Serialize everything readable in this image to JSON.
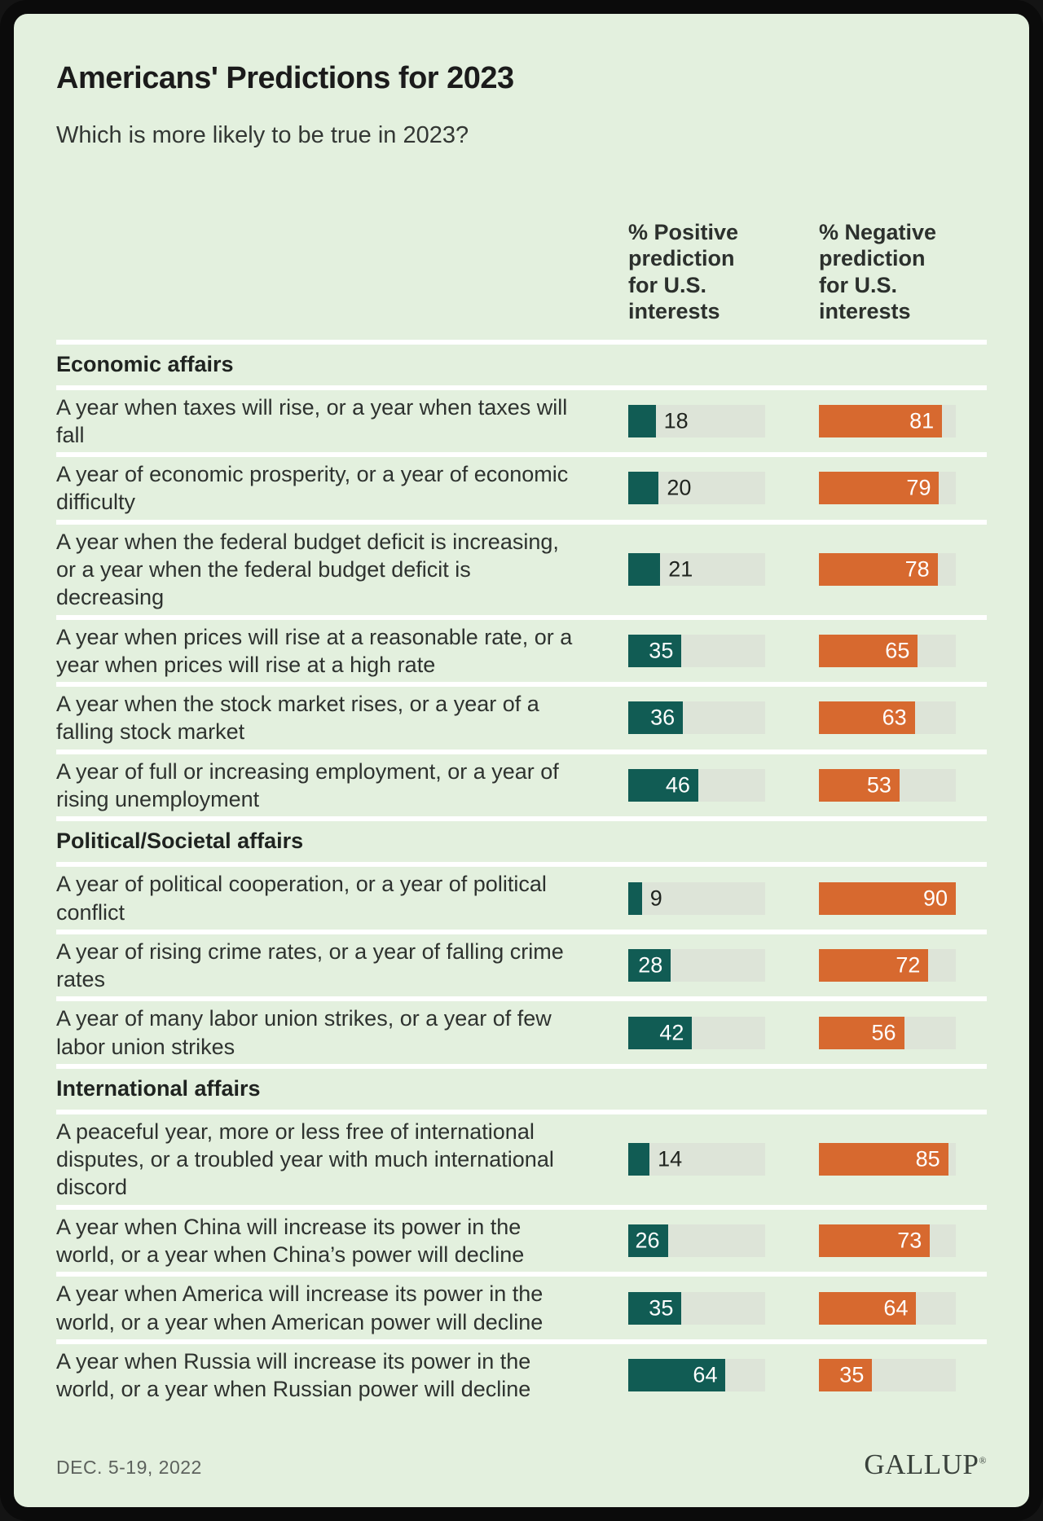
{
  "card": {
    "title": "Americans' Predictions for 2023",
    "subtitle": "Which is more likely to be true in 2023?",
    "column_headers": {
      "positive": "% Positive prediction for U.S. interests",
      "negative": "% Negative prediction for U.S. interests"
    },
    "footer": {
      "date": "DEC. 5-19, 2022",
      "brand": "GALLUP",
      "registered_mark": "®"
    }
  },
  "theme": {
    "background": "#e3f0de",
    "bar_track": "#dde4d8",
    "positive_bar": "#115c54",
    "negative_bar": "#d7692f",
    "separator": "#ffffff"
  },
  "chart_data": {
    "type": "bar",
    "title": "Americans' Predictions for 2023",
    "subtitle": "Which is more likely to be true in 2023?",
    "series_names": [
      "% Positive prediction for U.S. interests",
      "% Negative prediction for U.S. interests"
    ],
    "value_axis_max": 90,
    "inside_label_threshold": 25,
    "legend_position": "column headers",
    "grid": false,
    "sections": [
      {
        "label": "Economic affairs",
        "rows": [
          {
            "label": "A year when taxes will rise, or a year when taxes will fall",
            "positive": 18,
            "negative": 81
          },
          {
            "label": "A year of economic prosperity, or a year of economic difficulty",
            "positive": 20,
            "negative": 79
          },
          {
            "label": "A year when the federal budget deficit is increasing, or a year when the federal budget deficit is decreasing",
            "positive": 21,
            "negative": 78
          },
          {
            "label": "A year when prices will rise at a reasonable rate, or a year when prices will rise at a high rate",
            "positive": 35,
            "negative": 65
          },
          {
            "label": "A year when the stock market rises, or a year of a falling stock market",
            "positive": 36,
            "negative": 63
          },
          {
            "label": "A year of full or increasing employment, or a year of rising unemployment",
            "positive": 46,
            "negative": 53
          }
        ]
      },
      {
        "label": "Political/Societal affairs",
        "rows": [
          {
            "label": "A year of political cooperation, or a year of political conflict",
            "positive": 9,
            "negative": 90
          },
          {
            "label": "A year of rising crime rates, or a year of falling crime rates",
            "positive": 28,
            "negative": 72
          },
          {
            "label": "A year of many labor union strikes, or a year of few labor union strikes",
            "positive": 42,
            "negative": 56
          }
        ]
      },
      {
        "label": "International affairs",
        "rows": [
          {
            "label": "A peaceful year, more or less free of international disputes, or a troubled year with much international discord",
            "positive": 14,
            "negative": 85
          },
          {
            "label": "A year when China will increase its power in the world, or a year when China’s power will decline",
            "positive": 26,
            "negative": 73
          },
          {
            "label": "A year when America will increase its power in the world, or a year when American power will decline",
            "positive": 35,
            "negative": 64
          },
          {
            "label": "A year when Russia will increase its power in the world, or a year when Russian power will decline",
            "positive": 64,
            "negative": 35
          }
        ]
      }
    ]
  }
}
